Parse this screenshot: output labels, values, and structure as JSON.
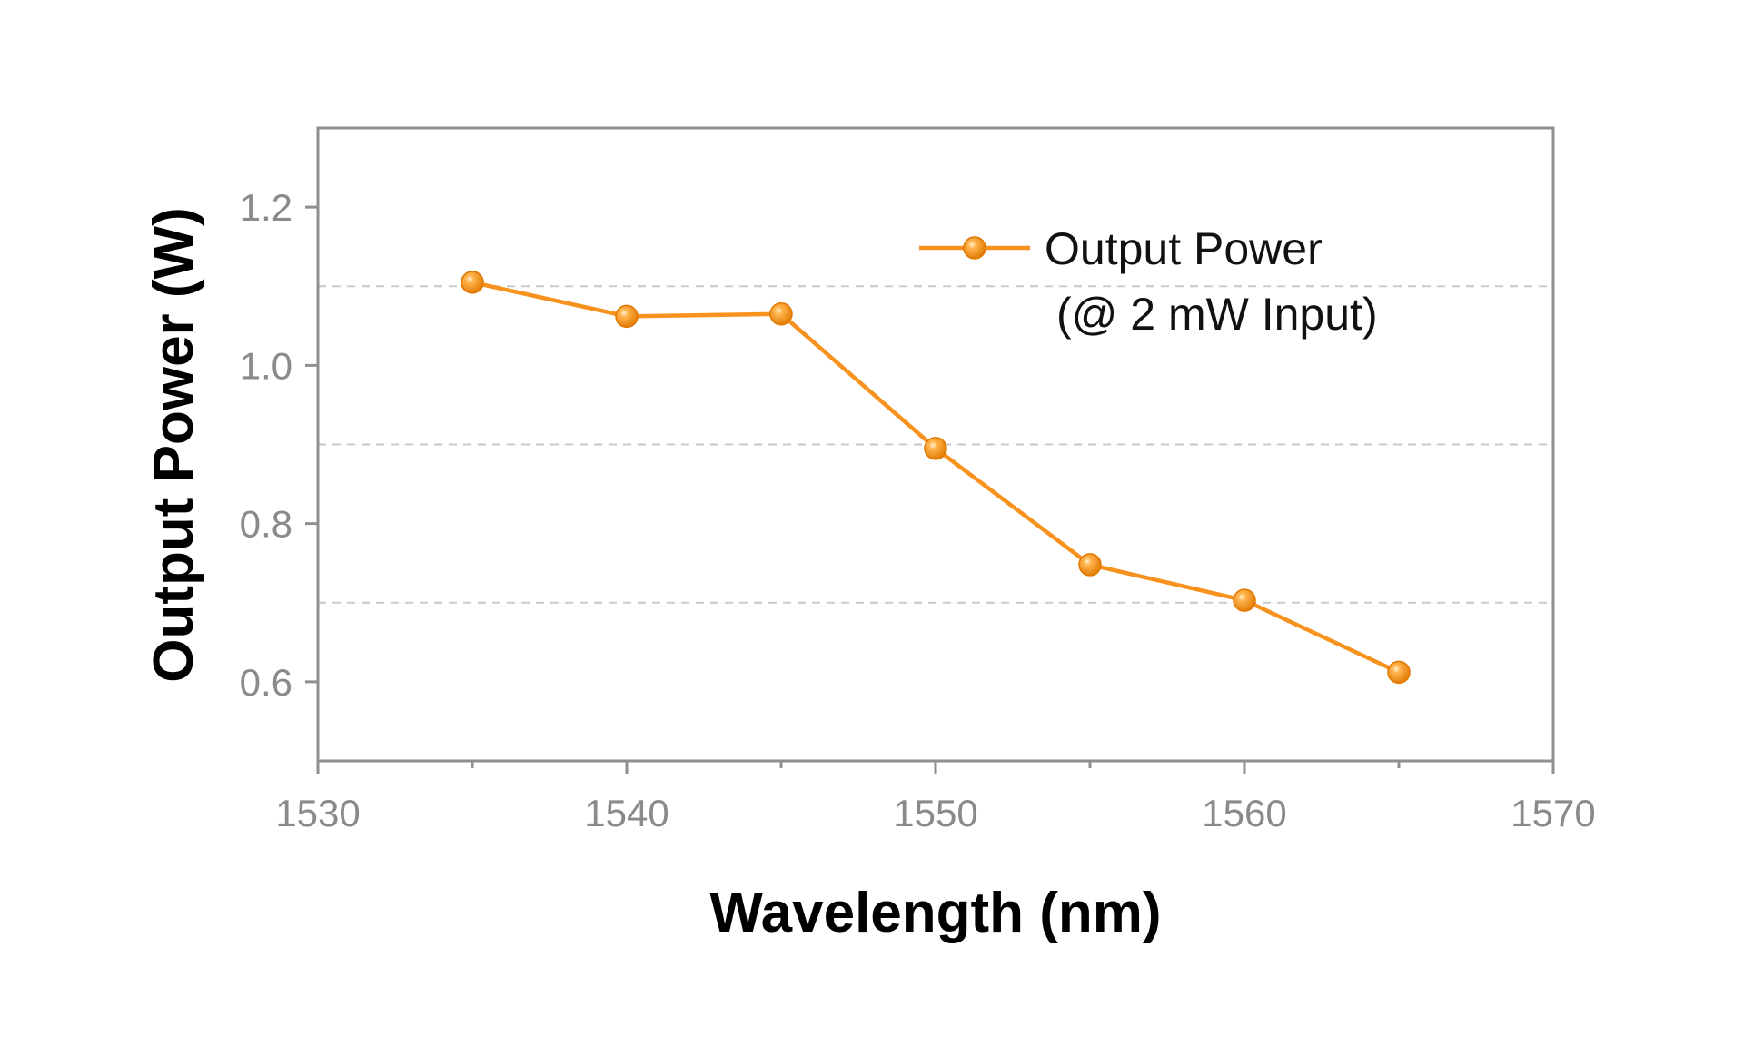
{
  "chart_data": {
    "type": "line",
    "title": "",
    "xlabel": "Wavelength (nm)",
    "ylabel": "Output Power (W)",
    "xlim": [
      1530,
      1570
    ],
    "ylim": [
      0.5,
      1.3
    ],
    "x_ticks": [
      1530,
      1540,
      1550,
      1560,
      1570
    ],
    "x_tick_labels": [
      "1530",
      "1540",
      "1550",
      "1560",
      "1570"
    ],
    "x_minor_ticks": [
      1535,
      1545,
      1555,
      1565
    ],
    "y_ticks": [
      0.6,
      0.8,
      1.0,
      1.2
    ],
    "y_tick_labels": [
      "0.6",
      "0.8",
      "1.0",
      "1.2"
    ],
    "y_grid_dashed": [
      0.7,
      0.9,
      1.1
    ],
    "grid": "horizontal dashed",
    "legend_position": "top-right",
    "series": [
      {
        "name": "Output Power",
        "legend_line2": "(@ 2 mW Input)",
        "color": "#f7921e",
        "x": [
          1535,
          1540,
          1545,
          1550,
          1555,
          1560,
          1565
        ],
        "y": [
          1.105,
          1.062,
          1.065,
          0.895,
          0.748,
          0.703,
          0.612
        ]
      }
    ]
  }
}
